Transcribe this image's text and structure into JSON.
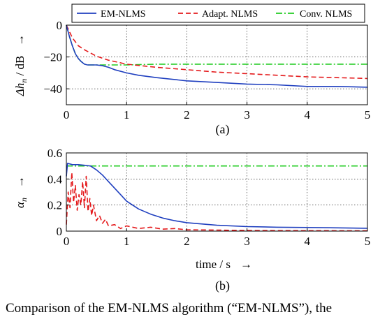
{
  "caption": "Comparison of the EM-NLMS algorithm (“EM-NLMS”), the",
  "legend": [
    {
      "key": "em",
      "label": "EM-NLMS",
      "color": "#1f3fbf",
      "dash": ""
    },
    {
      "key": "adapt",
      "label": "Adapt. NLMS",
      "color": "#e41a1c",
      "dash": "7 4"
    },
    {
      "key": "conv",
      "label": "Conv. NLMS",
      "color": "#22cc22",
      "dash": "9 3 2 3"
    }
  ],
  "chart_data": [
    {
      "type": "line",
      "panel_label": "(a)",
      "ylabel_math": "Δh",
      "ylabel_sub": "n",
      "ylabel_unit": "/ dB",
      "ylabel_arrow": "→",
      "xlim": [
        0,
        5
      ],
      "ylim": [
        -50,
        0
      ],
      "xticks": [
        0,
        1,
        2,
        3,
        4,
        5
      ],
      "yticks": [
        0,
        -20,
        -40
      ],
      "ytick_labels": [
        "0",
        "−20",
        "−40"
      ],
      "grid": true,
      "legend_position": "top",
      "series": [
        {
          "name": "EM-NLMS",
          "x": [
            0,
            0.05,
            0.1,
            0.15,
            0.2,
            0.25,
            0.3,
            0.35,
            0.4,
            0.5,
            0.6,
            0.7,
            0.8,
            1.0,
            1.2,
            1.5,
            2.0,
            2.5,
            3.0,
            3.5,
            4.0,
            4.5,
            5.0
          ],
          "y": [
            0,
            -7,
            -13,
            -18,
            -21,
            -23,
            -24.5,
            -25,
            -25,
            -25,
            -25.5,
            -26.5,
            -28,
            -30,
            -31.5,
            -33,
            -35,
            -36,
            -37,
            -37.5,
            -38.5,
            -38.5,
            -39
          ]
        },
        {
          "name": "Adapt. NLMS",
          "x": [
            0,
            0.1,
            0.2,
            0.3,
            0.4,
            0.5,
            0.7,
            1.0,
            1.5,
            2.0,
            2.5,
            3.0,
            3.5,
            4.0,
            4.5,
            5.0
          ],
          "y": [
            0,
            -8,
            -13,
            -15.5,
            -17.5,
            -19.5,
            -22,
            -24.5,
            -26.5,
            -28,
            -29.5,
            -30.5,
            -31.5,
            -32.5,
            -33,
            -33.5
          ]
        },
        {
          "name": "Conv. NLMS",
          "x": [
            0,
            0.05,
            0.1,
            0.15,
            0.2,
            0.25,
            0.3,
            0.35,
            0.4,
            0.6,
            1.0,
            1.5,
            2.0,
            2.5,
            3.0,
            3.5,
            4.0,
            4.5,
            5.0
          ],
          "y": [
            0,
            -7,
            -13,
            -18,
            -21,
            -23,
            -24.5,
            -25,
            -25,
            -25,
            -25,
            -24.5,
            -24.5,
            -24.5,
            -24.5,
            -24.5,
            -24.5,
            -24.5,
            -24.5
          ]
        }
      ]
    },
    {
      "type": "line",
      "panel_label": "(b)",
      "ylabel_math": "α",
      "ylabel_sub": "n",
      "ylabel_arrow": "→",
      "xlabel": "time / s",
      "xlabel_arrow": "→",
      "xlim": [
        0,
        5
      ],
      "ylim": [
        0,
        0.6
      ],
      "xticks": [
        0,
        1,
        2,
        3,
        4,
        5
      ],
      "yticks": [
        0,
        0.2,
        0.4,
        0.6
      ],
      "grid": true,
      "series": [
        {
          "name": "EM-NLMS",
          "x": [
            0,
            0.02,
            0.1,
            0.2,
            0.3,
            0.4,
            0.5,
            0.6,
            0.7,
            0.8,
            0.9,
            1.0,
            1.2,
            1.4,
            1.6,
            1.8,
            2.0,
            2.5,
            3.0,
            3.5,
            4.0,
            4.5,
            5.0
          ],
          "y": [
            0.42,
            0.52,
            0.51,
            0.51,
            0.505,
            0.5,
            0.47,
            0.43,
            0.38,
            0.33,
            0.28,
            0.23,
            0.17,
            0.13,
            0.1,
            0.08,
            0.065,
            0.045,
            0.035,
            0.03,
            0.028,
            0.025,
            0.022
          ]
        },
        {
          "name": "Adapt. NLMS",
          "x": [
            0,
            0.03,
            0.06,
            0.09,
            0.12,
            0.15,
            0.18,
            0.21,
            0.24,
            0.27,
            0.3,
            0.33,
            0.36,
            0.39,
            0.42,
            0.45,
            0.5,
            0.55,
            0.6,
            0.65,
            0.7,
            0.8,
            0.9,
            1.0,
            1.2,
            1.4,
            1.6,
            1.8,
            2.0,
            2.5,
            3.0,
            4.0,
            5.0
          ],
          "y": [
            0.05,
            0.3,
            0.18,
            0.45,
            0.22,
            0.35,
            0.16,
            0.28,
            0.2,
            0.38,
            0.18,
            0.42,
            0.15,
            0.25,
            0.12,
            0.2,
            0.08,
            0.12,
            0.06,
            0.09,
            0.04,
            0.05,
            0.02,
            0.04,
            0.02,
            0.03,
            0.015,
            0.02,
            0.01,
            0.008,
            0.005,
            0.003,
            0.002
          ]
        },
        {
          "name": "Conv. NLMS",
          "x": [
            0,
            5
          ],
          "y": [
            0.5,
            0.5
          ]
        }
      ]
    }
  ]
}
